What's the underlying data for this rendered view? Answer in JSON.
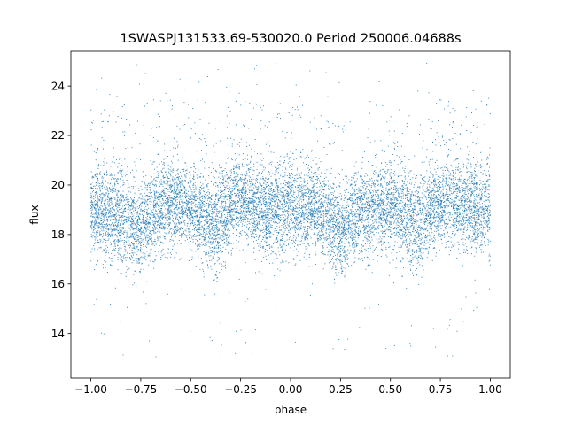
{
  "chart_data": {
    "type": "scatter",
    "title": "1SWASPJ131533.69-530020.0 Period 250006.04688s",
    "xlabel": "phase",
    "ylabel": "flux",
    "xlim": [
      -1.1,
      1.1
    ],
    "ylim": [
      12.2,
      25.4
    ],
    "x_ticks": [
      -1.0,
      -0.75,
      -0.5,
      -0.25,
      0.0,
      0.25,
      0.5,
      0.75,
      1.0
    ],
    "x_tick_labels": [
      "−1.00",
      "−0.75",
      "−0.50",
      "−0.25",
      "0.00",
      "0.25",
      "0.50",
      "0.75",
      "1.00"
    ],
    "y_ticks": [
      14,
      16,
      18,
      20,
      22,
      24
    ],
    "y_tick_labels": [
      "14",
      "16",
      "18",
      "20",
      "22",
      "24"
    ],
    "grid": false,
    "legend": "none",
    "point_color": "#1f77b4",
    "x_range_of_points": [
      -1.0,
      1.0
    ],
    "phase_folded_profile": {
      "phase": [
        -1.0,
        -0.875,
        -0.75,
        -0.625,
        -0.5,
        -0.375,
        -0.25,
        -0.125,
        0.0,
        0.125,
        0.25,
        0.375,
        0.5,
        0.625,
        0.75,
        0.875,
        1.0
      ],
      "median_flux": [
        19.0,
        18.8,
        18.3,
        19.3,
        19.1,
        18.4,
        19.5,
        19.0,
        19.2,
        19.0,
        18.2,
        19.0,
        19.2,
        18.4,
        19.4,
        19.2,
        19.0
      ],
      "band_half_width": [
        1.4,
        1.5,
        1.4,
        1.4,
        1.3,
        1.5,
        1.3,
        1.4,
        1.5,
        1.3,
        1.4,
        1.4,
        1.3,
        1.5,
        1.3,
        1.4,
        1.4
      ]
    },
    "flux_extent": [
      12.9,
      25.0
    ]
  }
}
